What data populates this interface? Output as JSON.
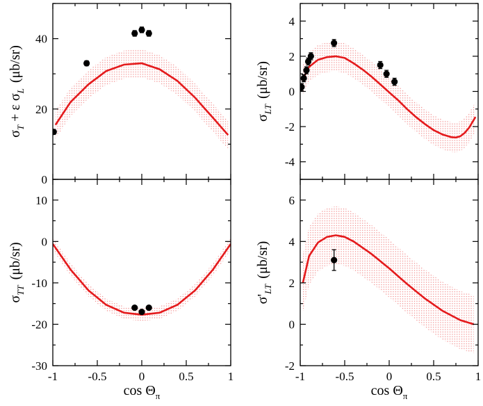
{
  "chart_data": [
    {
      "id": "p1",
      "type": "line",
      "ylabel": {
        "main": "σ",
        "sub1": "T",
        "mid": " + ε σ",
        "sub2": "L",
        "unit": "(μb/sr)"
      },
      "xlabel": "",
      "xlim": [
        -1,
        1
      ],
      "ylim": [
        0,
        50
      ],
      "xticks": [
        -1,
        -0.5,
        0,
        0.5,
        1
      ],
      "yticks": [
        0,
        20,
        40
      ],
      "ytick_labels": [
        "0",
        "20",
        "40"
      ],
      "model": {
        "name": "model curve",
        "x": [
          -0.97,
          -0.8,
          -0.6,
          -0.4,
          -0.2,
          0.0,
          0.2,
          0.4,
          0.6,
          0.8,
          0.97
        ],
        "y": [
          15.5,
          22.0,
          27.0,
          30.8,
          32.6,
          33.0,
          31.3,
          28.0,
          23.2,
          17.5,
          12.6
        ]
      },
      "band": {
        "name": "uncertainty band",
        "upper_offset": 4.0,
        "lower_offset": 4.0
      },
      "points": {
        "name": "data",
        "x": [
          -0.99,
          -0.62,
          -0.08,
          0.0,
          0.08
        ],
        "y": [
          13.5,
          33.0,
          41.5,
          42.5,
          41.5
        ],
        "err": [
          0.7,
          0.7,
          0.8,
          0.8,
          0.8
        ]
      }
    },
    {
      "id": "p2",
      "type": "line",
      "ylabel": {
        "main": "σ",
        "sub1": "LT",
        "mid": "",
        "sub2": "",
        "unit": "(μb/sr)"
      },
      "xlabel": "",
      "xlim": [
        -1,
        1
      ],
      "ylim": [
        -5,
        5
      ],
      "xticks": [
        -1,
        -0.5,
        0,
        0.5,
        1
      ],
      "yticks": [
        -4,
        -2,
        0,
        2,
        4
      ],
      "ytick_labels": [
        "-4",
        "-2",
        "0",
        "2",
        "4"
      ],
      "model": {
        "name": "model curve",
        "x": [
          -0.98,
          -0.9,
          -0.8,
          -0.7,
          -0.6,
          -0.5,
          -0.4,
          -0.3,
          -0.2,
          -0.1,
          0.0,
          0.1,
          0.2,
          0.3,
          0.4,
          0.5,
          0.6,
          0.7,
          0.75,
          0.8,
          0.85,
          0.9,
          0.97
        ],
        "y": [
          0.6,
          1.4,
          1.8,
          1.95,
          2.0,
          1.9,
          1.6,
          1.25,
          0.85,
          0.4,
          -0.05,
          -0.5,
          -1.0,
          -1.45,
          -1.85,
          -2.2,
          -2.45,
          -2.6,
          -2.62,
          -2.55,
          -2.35,
          -2.05,
          -1.45
        ]
      },
      "band": {
        "name": "uncertainty band",
        "upper_offset": 0.85,
        "lower_offset": 0.85
      },
      "points": {
        "name": "data",
        "x": [
          -0.985,
          -0.96,
          -0.93,
          -0.91,
          -0.88,
          -0.62,
          -0.1,
          -0.03,
          0.06
        ],
        "y": [
          0.25,
          0.75,
          1.2,
          1.7,
          2.0,
          2.75,
          1.5,
          1.0,
          0.55
        ],
        "err": [
          0.2,
          0.2,
          0.2,
          0.2,
          0.2,
          0.2,
          0.2,
          0.2,
          0.2
        ]
      }
    },
    {
      "id": "p3",
      "type": "line",
      "ylabel": {
        "main": "σ",
        "sub1": "TT",
        "mid": "",
        "sub2": "",
        "unit": "(μb/sr)"
      },
      "xlabel": "cos Θ",
      "xlabel_sub": "π",
      "xlim": [
        -1,
        1
      ],
      "ylim": [
        -30,
        15
      ],
      "xticks": [
        -1,
        -0.5,
        0,
        0.5,
        1
      ],
      "xtick_labels": [
        "-1",
        "-0.5",
        "0",
        "0.5",
        "1"
      ],
      "yticks": [
        -30,
        -20,
        -10,
        0,
        10
      ],
      "ytick_labels": [
        "-30",
        "-20",
        "-10",
        "0",
        "10"
      ],
      "model": {
        "name": "model curve",
        "x": [
          -1.0,
          -0.8,
          -0.6,
          -0.4,
          -0.2,
          0.0,
          0.2,
          0.4,
          0.6,
          0.8,
          1.0
        ],
        "y": [
          -0.6,
          -6.8,
          -11.8,
          -15.3,
          -17.2,
          -17.7,
          -17.2,
          -15.3,
          -11.8,
          -6.8,
          -0.6
        ]
      },
      "band": {
        "name": "uncertainty band",
        "upper_offset": 1.5,
        "lower_offset": 1.5
      },
      "points": {
        "name": "data",
        "x": [
          -0.08,
          0.0,
          0.08
        ],
        "y": [
          -16.0,
          -17.0,
          -16.0
        ],
        "err": [
          0.4,
          0.4,
          0.4
        ]
      }
    },
    {
      "id": "p4",
      "type": "line",
      "ylabel": {
        "main": "σ'",
        "sub1": "LT",
        "mid": "",
        "sub2": "",
        "unit": "(μb/sr)"
      },
      "xlabel": "cos Θ",
      "xlabel_sub": "π",
      "xlim": [
        -1,
        1
      ],
      "ylim": [
        -2,
        7
      ],
      "xticks": [
        -1,
        -0.5,
        0,
        0.5,
        1
      ],
      "xtick_labels": [
        "-1",
        "-0.5",
        "0",
        "0.5",
        "1"
      ],
      "yticks": [
        -2,
        0,
        2,
        4,
        6
      ],
      "ytick_labels": [
        "-2",
        "0",
        "2",
        "4",
        "6"
      ],
      "model": {
        "name": "model curve",
        "x": [
          -0.97,
          -0.9,
          -0.8,
          -0.7,
          -0.6,
          -0.5,
          -0.4,
          -0.2,
          0.0,
          0.2,
          0.4,
          0.6,
          0.8,
          0.95
        ],
        "y": [
          2.0,
          3.3,
          3.95,
          4.22,
          4.3,
          4.22,
          4.0,
          3.4,
          2.7,
          1.95,
          1.25,
          0.65,
          0.2,
          0.0
        ]
      },
      "band": {
        "name": "uncertainty band",
        "upper_offset": 1.4,
        "lower_offset": 1.4
      },
      "points": {
        "name": "data",
        "x": [
          -0.62
        ],
        "y": [
          3.1
        ],
        "err": [
          0.5
        ]
      }
    }
  ]
}
